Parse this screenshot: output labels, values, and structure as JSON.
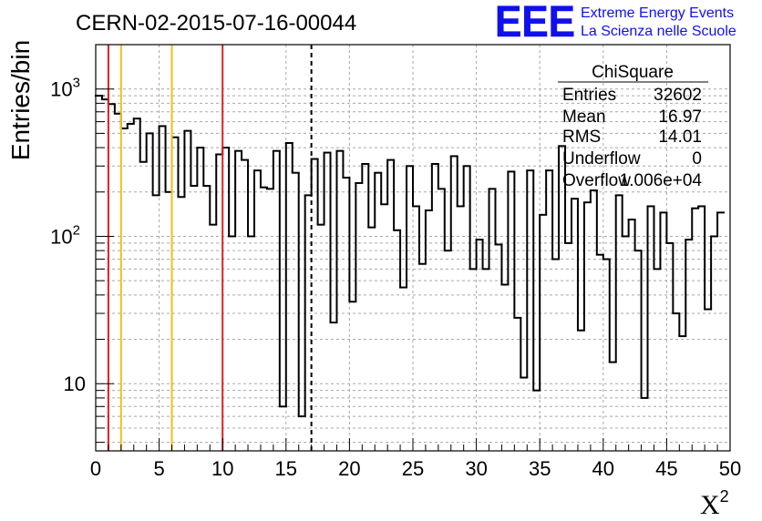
{
  "chart_data": {
    "type": "histogram",
    "title": "CERN-02-2015-07-16-00044",
    "xlabel": "X",
    "xlabel_superscript": "2",
    "ylabel": "Entries/bin",
    "xlim": [
      0,
      50
    ],
    "ylim": [
      3.5,
      2000
    ],
    "yscale": "log",
    "grid": true,
    "bin_width": 0.5,
    "x_ticks": [
      0,
      5,
      10,
      15,
      20,
      25,
      30,
      35,
      40,
      45,
      50
    ],
    "y_ticks": [
      {
        "value": 10,
        "label": "10"
      },
      {
        "value": 100,
        "label": "10",
        "exp": "2"
      },
      {
        "value": 1000,
        "label": "10",
        "exp": "3"
      }
    ],
    "values": [
      900,
      850,
      790,
      680,
      540,
      580,
      630,
      320,
      500,
      190,
      560,
      200,
      470,
      185,
      520,
      220,
      400,
      220,
      120,
      360,
      400,
      100,
      380,
      330,
      100,
      280,
      215,
      210,
      380,
      7,
      430,
      270,
      6,
      190,
      335,
      120,
      370,
      26,
      380,
      250,
      36,
      230,
      310,
      115,
      270,
      165,
      330,
      110,
      45,
      300,
      160,
      65,
      150,
      310,
      210,
      80,
      350,
      160,
      300,
      60,
      95,
      60,
      210,
      88,
      47,
      275,
      28,
      11,
      280,
      9,
      140,
      280,
      70,
      410,
      90,
      180,
      23,
      170,
      205,
      75,
      70,
      14,
      190,
      100,
      130,
      80,
      8,
      160,
      60,
      145,
      90,
      30,
      21,
      95,
      155,
      160,
      32,
      100,
      145
    ],
    "vertical_lines": [
      {
        "x": 1,
        "color": "#e02020",
        "style": "solid"
      },
      {
        "x": 2,
        "color": "#f0c020",
        "style": "solid"
      },
      {
        "x": 6,
        "color": "#f0c020",
        "style": "solid"
      },
      {
        "x": 10,
        "color": "#e02020",
        "style": "solid"
      },
      {
        "x": 17,
        "color": "#000000",
        "style": "dashed"
      }
    ],
    "stats": {
      "title": "ChiSquare",
      "rows": [
        {
          "label": "Entries",
          "value": "32602"
        },
        {
          "label": "Mean",
          "value": "16.97"
        },
        {
          "label": "RMS",
          "value": "14.01"
        },
        {
          "label": "Underflow",
          "value": "0"
        },
        {
          "label": "Overflow",
          "value": "1.006e+04"
        }
      ]
    }
  },
  "logo": {
    "mark": "EEE",
    "line1": "Extreme Energy Events",
    "line2": "La Scienza nelle Scuole",
    "color": "#1010ee"
  },
  "colors": {
    "histogram": "#000000",
    "grid": "#a8a8a8"
  }
}
